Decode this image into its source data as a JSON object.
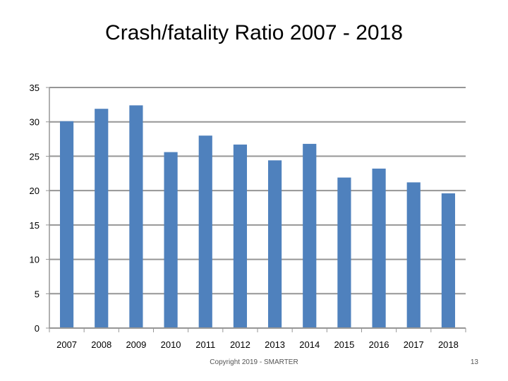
{
  "slide": {
    "copyright": "Copyright 2019 - SMARTER",
    "page_number": "13"
  },
  "chart_data": {
    "type": "bar",
    "title": "Crash/fatality Ratio 2007 - 2018",
    "xlabel": "",
    "ylabel": "",
    "categories": [
      "2007",
      "2008",
      "2009",
      "2010",
      "2011",
      "2012",
      "2013",
      "2014",
      "2015",
      "2016",
      "2017",
      "2018"
    ],
    "values": [
      30.1,
      31.9,
      32.4,
      25.6,
      28.0,
      26.7,
      24.4,
      26.8,
      21.9,
      23.2,
      21.2,
      19.6
    ],
    "ylim": [
      0,
      35
    ],
    "yticks": [
      0,
      5,
      10,
      15,
      20,
      25,
      30,
      35
    ],
    "grid": true,
    "bar_color": "#4F81BD",
    "grid_color": "#969696"
  }
}
